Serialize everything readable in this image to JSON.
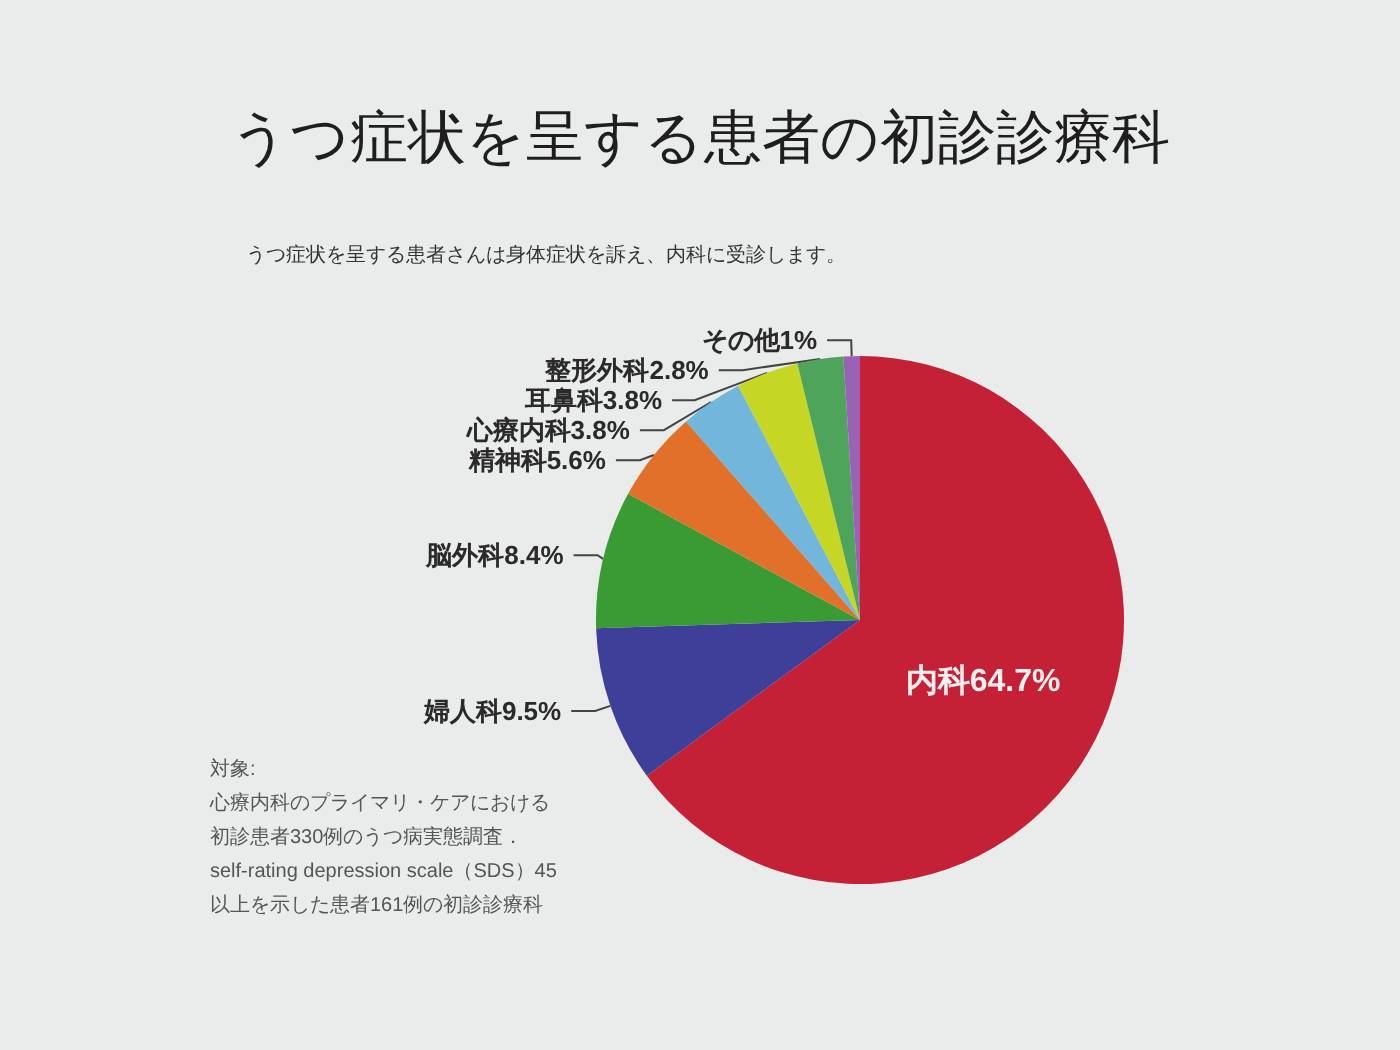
{
  "chart_data": {
    "type": "pie",
    "title": "うつ症状を呈する患者の初診診療科",
    "subtitle": "うつ症状を呈する患者さんは身体症状を訴え、内科に受診します。",
    "categories": [
      "内科",
      "婦人科",
      "脳外科",
      "精神科",
      "心療内科",
      "耳鼻科",
      "整形外科",
      "その他"
    ],
    "values": [
      64.7,
      9.5,
      8.4,
      5.6,
      3.8,
      3.8,
      2.8,
      1
    ],
    "value_labels": [
      "64.7%",
      "9.5%",
      "8.4%",
      "5.6%",
      "3.8%",
      "3.8%",
      "2.8%",
      "1%"
    ],
    "colors": [
      "#c42036",
      "#3e3f98",
      "#3a9a34",
      "#e0702a",
      "#72b6dc",
      "#c6d624",
      "#4fa45c",
      "#9a62b4"
    ],
    "legend": false,
    "annotations": [
      "対象:",
      "心療内科のプライマリ・ケアにおける",
      "初診患者330例のうつ病実態調査．",
      "self-rating depression scale（SDS）45",
      "以上を示した患者161例の初診診療科"
    ]
  }
}
